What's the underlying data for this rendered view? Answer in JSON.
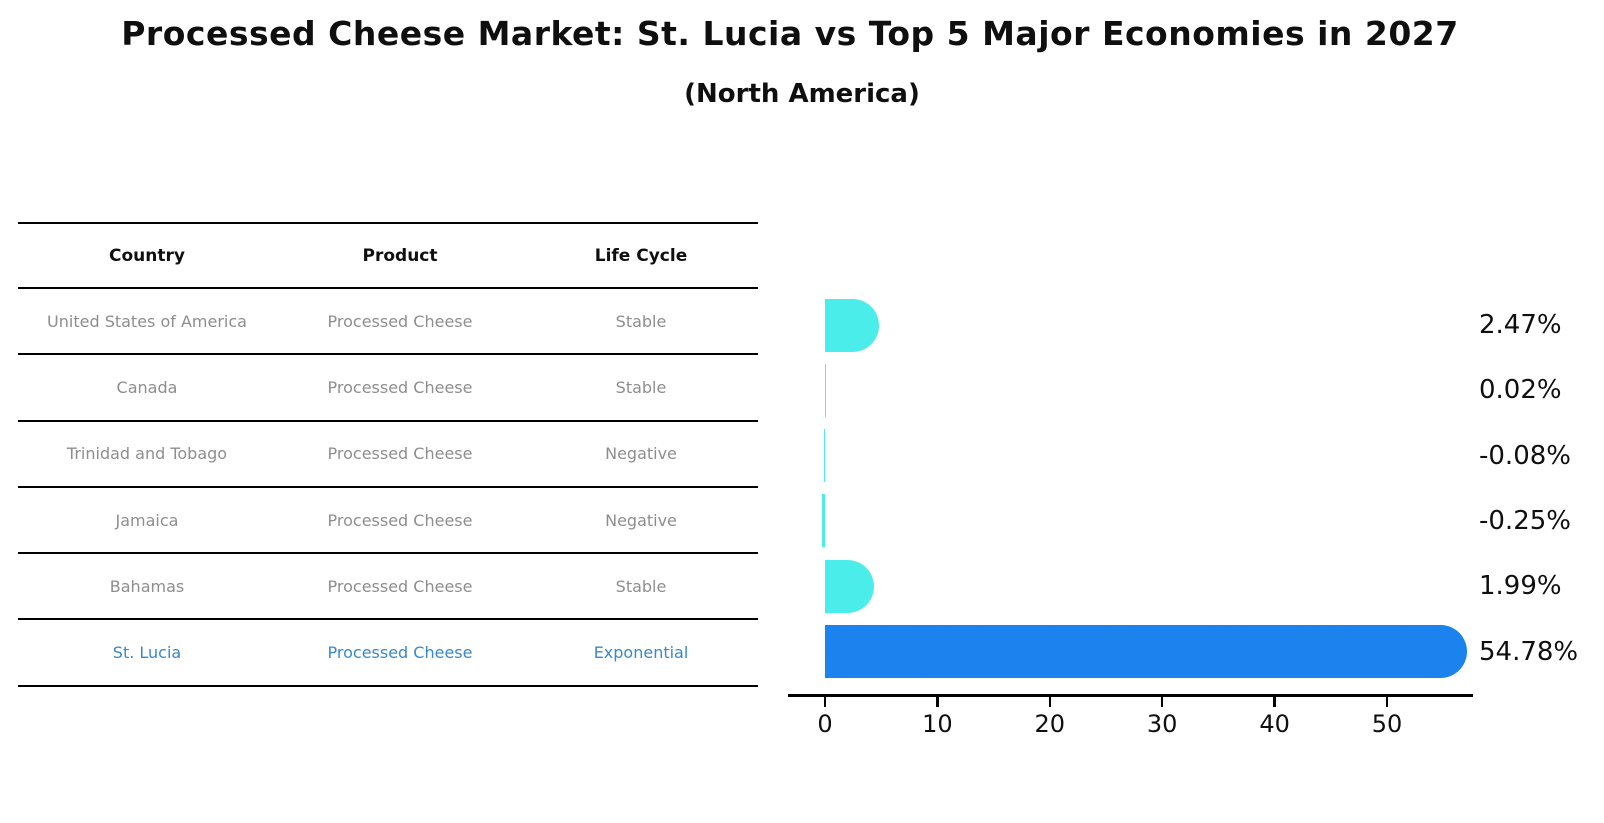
{
  "title": "Processed Cheese Market: St. Lucia vs Top 5 Major Economies in 2027",
  "subtitle": "(North America)",
  "table": {
    "headers": [
      "Country",
      "Product",
      "Life Cycle"
    ],
    "rows": [
      {
        "country": "United States of America",
        "product": "Processed Cheese",
        "life_cycle": "Stable",
        "highlight": false
      },
      {
        "country": "Canada",
        "product": "Processed Cheese",
        "life_cycle": "Stable",
        "highlight": false
      },
      {
        "country": "Trinidad and Tobago",
        "product": "Processed Cheese",
        "life_cycle": "Negative",
        "highlight": false
      },
      {
        "country": "Jamaica",
        "product": "Processed Cheese",
        "life_cycle": "Negative",
        "highlight": false
      },
      {
        "country": "Bahamas",
        "product": "Processed Cheese",
        "life_cycle": "Stable",
        "highlight": false
      },
      {
        "country": "St. Lucia",
        "product": "Processed Cheese",
        "life_cycle": "Exponential",
        "highlight": true
      }
    ]
  },
  "chart_data": {
    "type": "bar",
    "orientation": "horizontal",
    "title": "Processed Cheese Market: St. Lucia vs Top 5 Major Economies in 2027",
    "subtitle": "(North America)",
    "categories": [
      "United States of America",
      "Canada",
      "Trinidad and Tobago",
      "Jamaica",
      "Bahamas",
      "St. Lucia"
    ],
    "values": [
      2.47,
      0.02,
      -0.08,
      -0.25,
      1.99,
      54.78
    ],
    "value_labels": [
      "2.47%",
      "0.02%",
      "-0.08%",
      "-0.25%",
      "1.99%",
      "54.78%"
    ],
    "xticks": [
      0,
      10,
      20,
      30,
      40,
      50
    ],
    "xlim": [
      -3.3,
      57.7
    ],
    "grid": false,
    "legend": "none",
    "highlight_index": 5,
    "bar_style": "rounded-right-cap, highlighted bar has dotted edge"
  },
  "colors": {
    "bar_cyan": "#4AEDEA",
    "bar_blue": "#1B82EE",
    "highlight_text": "#3A87C9",
    "row_text": "#8E8E8E",
    "line_black": "#000000"
  }
}
